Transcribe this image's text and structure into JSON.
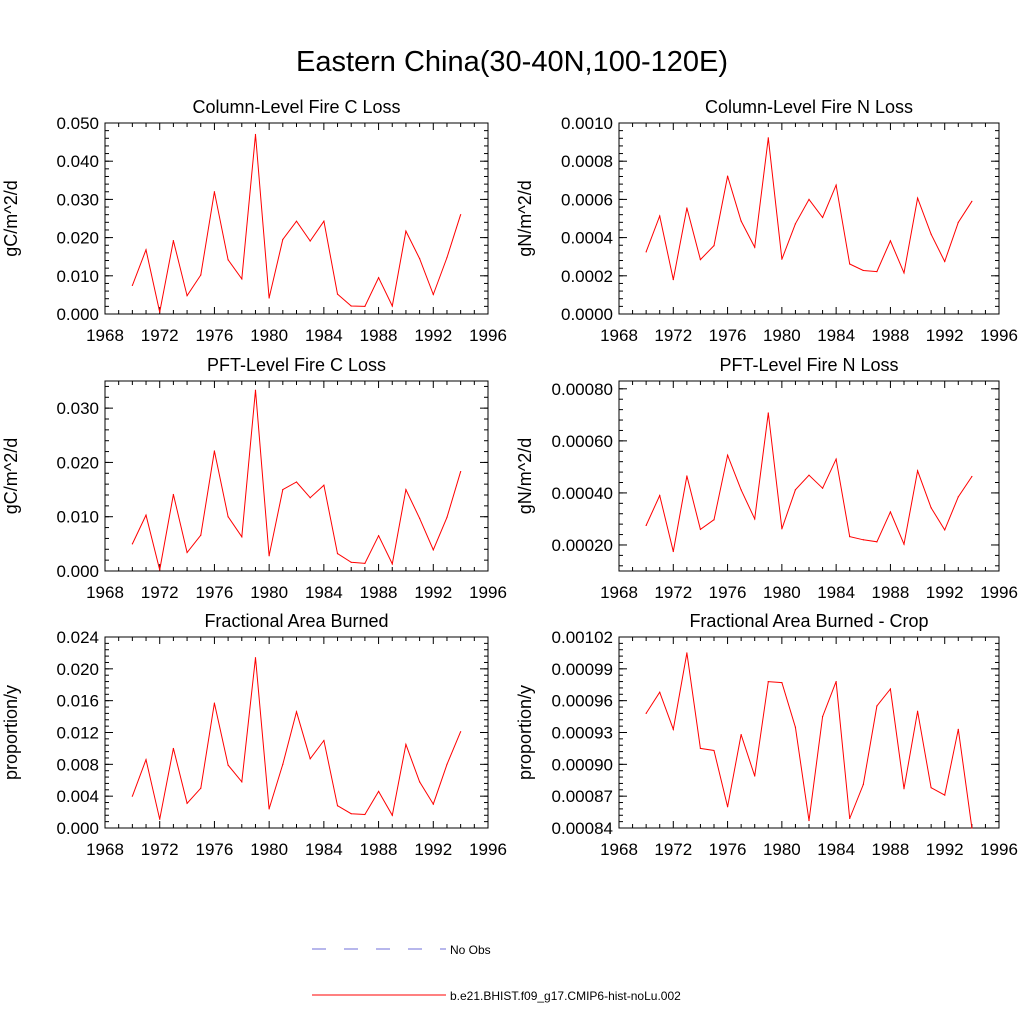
{
  "figure": {
    "title": "Eastern China(30-40N,100-120E)",
    "legend": {
      "obs_label": "No Obs",
      "obs_color": "#6f6fd8",
      "model_label": "b.e21.BHIST.f09_g17.CMIP6-hist-noLu.002",
      "model_color": "#ff0000"
    }
  },
  "chart_data": [
    {
      "type": "line",
      "title": "Column-Level Fire C Loss",
      "xlabel": "",
      "ylabel": "gC/m^2/d",
      "xlim": [
        1968,
        1996
      ],
      "xticks": [
        1968,
        1972,
        1976,
        1980,
        1984,
        1988,
        1992,
        1996
      ],
      "ylim": [
        0,
        0.05
      ],
      "yticks": [
        0,
        0.01,
        0.02,
        0.03,
        0.04,
        0.05
      ],
      "ytick_labels": [
        "0.000",
        "0.010",
        "0.020",
        "0.030",
        "0.040",
        "0.050"
      ],
      "x": [
        1970,
        1971,
        1972,
        1973,
        1974,
        1975,
        1976,
        1977,
        1978,
        1979,
        1980,
        1981,
        1982,
        1983,
        1984,
        1985,
        1986,
        1987,
        1988,
        1989,
        1990,
        1991,
        1992,
        1993,
        1994
      ],
      "series": [
        {
          "values": [
            0.0075,
            0.0168,
            0.0005,
            0.0192,
            0.0048,
            0.0102,
            0.032,
            0.0142,
            0.0092,
            0.047,
            0.0042,
            0.0195,
            0.0243,
            0.0191,
            0.0243,
            0.0052,
            0.0021,
            0.002,
            0.0095,
            0.0021,
            0.0217,
            0.0145,
            0.0051,
            0.0148,
            0.026
          ]
        }
      ]
    },
    {
      "type": "line",
      "title": "Column-Level Fire N Loss",
      "xlabel": "",
      "ylabel": "gN/m^2/d",
      "xlim": [
        1968,
        1996
      ],
      "xticks": [
        1968,
        1972,
        1976,
        1980,
        1984,
        1988,
        1992,
        1996
      ],
      "ylim": [
        0,
        0.001
      ],
      "yticks": [
        0,
        0.0002,
        0.0004,
        0.0006,
        0.0008,
        0.001
      ],
      "ytick_labels": [
        "0.0000",
        "0.0002",
        "0.0004",
        "0.0006",
        "0.0008",
        "0.0010"
      ],
      "x": [
        1970,
        1971,
        1972,
        1973,
        1974,
        1975,
        1976,
        1977,
        1978,
        1979,
        1980,
        1981,
        1982,
        1983,
        1984,
        1985,
        1986,
        1987,
        1988,
        1989,
        1990,
        1991,
        1992,
        1993,
        1994
      ],
      "series": [
        {
          "values": [
            0.000325,
            0.000513,
            0.00018,
            0.000555,
            0.000285,
            0.000358,
            0.000722,
            0.000487,
            0.00035,
            0.000922,
            0.000287,
            0.000472,
            0.0006,
            0.000505,
            0.000675,
            0.000262,
            0.000228,
            0.000222,
            0.000383,
            0.000215,
            0.000607,
            0.000418,
            0.000275,
            0.00048,
            0.00059
          ]
        }
      ]
    },
    {
      "type": "line",
      "title": "PFT-Level Fire C Loss",
      "xlabel": "",
      "ylabel": "gC/m^2/d",
      "xlim": [
        1968,
        1996
      ],
      "xticks": [
        1968,
        1972,
        1976,
        1980,
        1984,
        1988,
        1992,
        1996
      ],
      "ylim": [
        0,
        0.035
      ],
      "yticks": [
        0,
        0.01,
        0.02,
        0.03
      ],
      "ytick_labels": [
        "0.000",
        "0.010",
        "0.020",
        "0.030"
      ],
      "x": [
        1970,
        1971,
        1972,
        1973,
        1974,
        1975,
        1976,
        1977,
        1978,
        1979,
        1980,
        1981,
        1982,
        1983,
        1984,
        1985,
        1986,
        1987,
        1988,
        1989,
        1990,
        1991,
        1992,
        1993,
        1994
      ],
      "series": [
        {
          "values": [
            0.005,
            0.0103,
            0.0002,
            0.0141,
            0.0034,
            0.0066,
            0.0221,
            0.01,
            0.0063,
            0.0333,
            0.0028,
            0.015,
            0.0164,
            0.0135,
            0.0158,
            0.0032,
            0.0016,
            0.0014,
            0.0065,
            0.0013,
            0.015,
            0.0097,
            0.0039,
            0.0099,
            0.0183
          ]
        }
      ]
    },
    {
      "type": "line",
      "title": "PFT-Level Fire N Loss",
      "xlabel": "",
      "ylabel": "gN/m^2/d",
      "xlim": [
        1968,
        1996
      ],
      "xticks": [
        1968,
        1972,
        1976,
        1980,
        1984,
        1988,
        1992,
        1996
      ],
      "ylim": [
        0.0001,
        0.00083
      ],
      "yticks": [
        0.0002,
        0.0004,
        0.0006,
        0.0008
      ],
      "ytick_labels": [
        "0.00020",
        "0.00040",
        "0.00060",
        "0.00080"
      ],
      "x": [
        1970,
        1971,
        1972,
        1973,
        1974,
        1975,
        1976,
        1977,
        1978,
        1979,
        1980,
        1981,
        1982,
        1983,
        1984,
        1985,
        1986,
        1987,
        1988,
        1989,
        1990,
        1991,
        1992,
        1993,
        1994
      ],
      "series": [
        {
          "values": [
            0.000275,
            0.00039,
            0.000175,
            0.000465,
            0.00026,
            0.000297,
            0.000545,
            0.000412,
            0.0003,
            0.000707,
            0.000262,
            0.000412,
            0.000468,
            0.000418,
            0.00053,
            0.000232,
            0.00022,
            0.000212,
            0.000327,
            0.000203,
            0.000485,
            0.000343,
            0.000258,
            0.000385,
            0.000463
          ]
        }
      ]
    },
    {
      "type": "line",
      "title": "Fractional Area Burned",
      "xlabel": "",
      "ylabel": "proportion/y",
      "xlim": [
        1968,
        1996
      ],
      "xticks": [
        1968,
        1972,
        1976,
        1980,
        1984,
        1988,
        1992,
        1996
      ],
      "ylim": [
        0,
        0.024
      ],
      "yticks": [
        0,
        0.004,
        0.008,
        0.012,
        0.016,
        0.02,
        0.024
      ],
      "ytick_labels": [
        "0.000",
        "0.004",
        "0.008",
        "0.012",
        "0.016",
        "0.020",
        "0.024"
      ],
      "x": [
        1970,
        1971,
        1972,
        1973,
        1974,
        1975,
        1976,
        1977,
        1978,
        1979,
        1980,
        1981,
        1982,
        1983,
        1984,
        1985,
        1986,
        1987,
        1988,
        1989,
        1990,
        1991,
        1992,
        1993,
        1994
      ],
      "series": [
        {
          "values": [
            0.004,
            0.0086,
            0.0011,
            0.01,
            0.0031,
            0.005,
            0.0157,
            0.0079,
            0.0058,
            0.0214,
            0.0024,
            0.008,
            0.0146,
            0.0087,
            0.011,
            0.0028,
            0.0018,
            0.0017,
            0.0046,
            0.0016,
            0.0105,
            0.0058,
            0.003,
            0.008,
            0.0121
          ]
        }
      ]
    },
    {
      "type": "line",
      "title": "Fractional Area Burned - Crop",
      "xlabel": "",
      "ylabel": "proportion/y",
      "xlim": [
        1968,
        1996
      ],
      "xticks": [
        1968,
        1972,
        1976,
        1980,
        1984,
        1988,
        1992,
        1996
      ],
      "ylim": [
        0.00084,
        0.00102
      ],
      "yticks": [
        0.00084,
        0.00087,
        0.0009,
        0.00093,
        0.00096,
        0.00099,
        0.00102
      ],
      "ytick_labels": [
        "0.00084",
        "0.00087",
        "0.00090",
        "0.00093",
        "0.00096",
        "0.00099",
        "0.00102"
      ],
      "x": [
        1970,
        1971,
        1972,
        1973,
        1974,
        1975,
        1976,
        1977,
        1978,
        1979,
        1980,
        1981,
        1982,
        1983,
        1984,
        1985,
        1986,
        1987,
        1988,
        1989,
        1990,
        1991,
        1992,
        1993,
        1994
      ],
      "series": [
        {
          "values": [
            0.000948,
            0.000968,
            0.000933,
            0.001005,
            0.000915,
            0.000913,
            0.00086,
            0.000928,
            0.000889,
            0.000978,
            0.000977,
            0.000935,
            0.000847,
            0.000945,
            0.000978,
            0.000849,
            0.000881,
            0.000955,
            0.000971,
            0.000877,
            0.00095,
            0.000878,
            0.000871,
            0.000933,
            0.00084
          ]
        }
      ]
    }
  ]
}
